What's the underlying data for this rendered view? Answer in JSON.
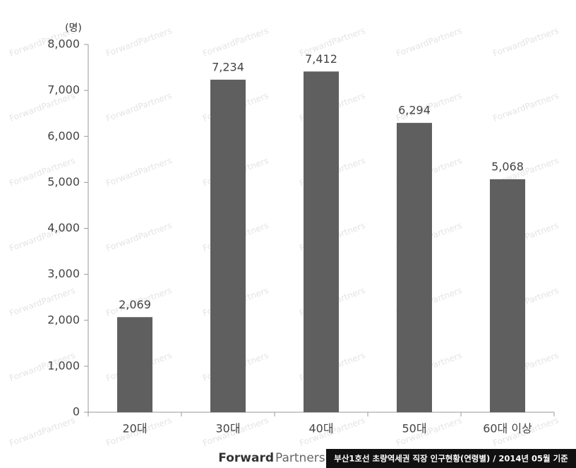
{
  "chart_data": {
    "type": "bar",
    "y_unit": "(명)",
    "categories": [
      "20대",
      "30대",
      "40대",
      "50대",
      "60대 이상"
    ],
    "values": [
      2069,
      7234,
      7412,
      6294,
      5068
    ],
    "value_labels": [
      "2,069",
      "7,234",
      "7,412",
      "6,294",
      "5,068"
    ],
    "color": "#5f5f5f",
    "ylim": [
      0,
      8000
    ],
    "yticks": [
      0,
      {
        "value": 1000,
        "label": "1,000"
      },
      {
        "value": 2000,
        "label": "2,000"
      },
      {
        "value": 3000,
        "label": "3,000"
      },
      {
        "value": 4000,
        "label": "4,000"
      },
      {
        "value": 5000,
        "label": "5,000"
      },
      {
        "value": 6000,
        "label": "6,000"
      },
      {
        "value": 7000,
        "label": "7,000"
      },
      {
        "value": 8000,
        "label": "8,000"
      }
    ],
    "grid": false
  },
  "watermark": "ForwardPartners",
  "footer": {
    "logo_bold": "Forward",
    "logo_light": "Partners",
    "caption": "부산1호선 초량역세권 직장 인구현황(연령별) / 2014년 05월 기준"
  }
}
